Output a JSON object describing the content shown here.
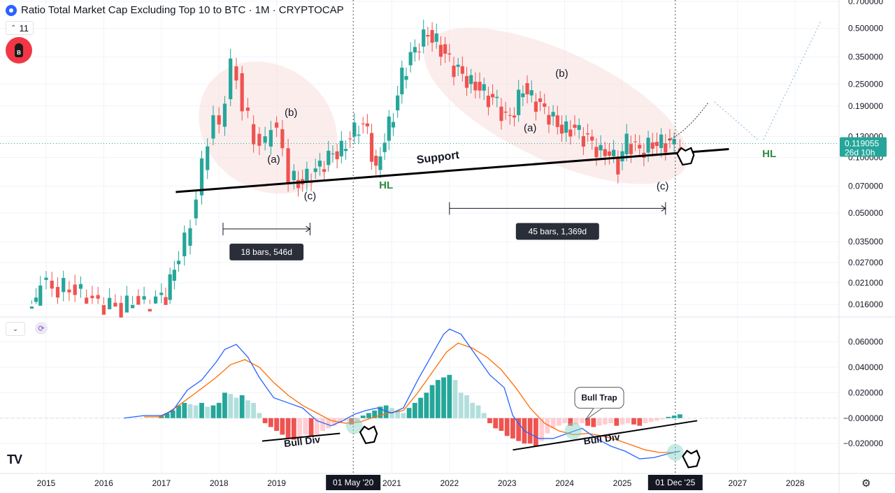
{
  "header": {
    "title": "Ratio Total Market Cap Excluding Top 10 to BTC · 1M · CRYPTOCAP",
    "indicator_count": "11",
    "symbol_badge": "B"
  },
  "chart_data": {
    "type": "candlestick",
    "title": "Ratio Total Market Cap Excluding Top 10 to BTC · 1M · CRYPTOCAP",
    "timeframe": "1M",
    "scale": "log",
    "x_ticks": [
      "2015",
      "2016",
      "2017",
      "2018",
      "2019",
      "2021",
      "2022",
      "2023",
      "2024",
      "2025",
      "2027",
      "2028"
    ],
    "x_ticks_years": [
      2015,
      2016,
      2017,
      2018,
      2019,
      2021,
      2022,
      2023,
      2024,
      2025,
      2027,
      2028
    ],
    "price_axis_labels": [
      "0.700000",
      "0.500000",
      "0.350000",
      "0.250000",
      "0.190000",
      "0.130000",
      "0.100000",
      "0.070000",
      "0.050000",
      "0.035000",
      "0.027000",
      "0.021000",
      "0.016000"
    ],
    "price_axis_values": [
      0.7,
      0.5,
      0.35,
      0.25,
      0.19,
      0.13,
      0.1,
      0.07,
      0.05,
      0.035,
      0.027,
      0.021,
      0.016
    ],
    "current_price": "0.119055",
    "current_price_value": 0.119055,
    "countdown": "26d 10h",
    "crosshair_labels": [
      "01 May '20",
      "01 Dec '25"
    ],
    "crosshair_years": [
      2020.33,
      2025.92
    ],
    "close_series": {
      "t": [
        2014.75,
        2014.9,
        2015.0,
        2015.2,
        2015.4,
        2015.6,
        2015.8,
        2016.0,
        2016.2,
        2016.4,
        2016.6,
        2016.8,
        2017.0,
        2017.15,
        2017.3,
        2017.4,
        2017.5,
        2017.6,
        2017.7,
        2017.8,
        2017.9,
        2018.0,
        2018.1,
        2018.2,
        2018.3,
        2018.4,
        2018.5,
        2018.6,
        2018.7,
        2018.8,
        2018.9,
        2019.0,
        2019.1,
        2019.2,
        2019.3,
        2019.45,
        2019.6,
        2019.75,
        2019.9,
        2020.05,
        2020.2,
        2020.35,
        2020.5,
        2020.65,
        2020.8,
        2020.95,
        2021.1,
        2021.25,
        2021.4,
        2021.55,
        2021.7,
        2021.85,
        2022.0,
        2022.15,
        2022.3,
        2022.45,
        2022.6,
        2022.75,
        2022.9,
        2023.05,
        2023.2,
        2023.35,
        2023.5,
        2023.65,
        2023.8,
        2023.95,
        2024.1,
        2024.25,
        2024.4,
        2024.55,
        2024.7,
        2024.85,
        2025.0,
        2025.15,
        2025.3,
        2025.45,
        2025.6,
        2025.75,
        2025.9,
        2026.0
      ],
      "v": [
        0.016,
        0.023,
        0.019,
        0.02,
        0.019,
        0.018,
        0.016,
        0.016,
        0.015,
        0.017,
        0.016,
        0.017,
        0.018,
        0.025,
        0.03,
        0.035,
        0.045,
        0.06,
        0.09,
        0.13,
        0.16,
        0.145,
        0.22,
        0.31,
        0.27,
        0.19,
        0.16,
        0.13,
        0.115,
        0.12,
        0.16,
        0.135,
        0.11,
        0.08,
        0.072,
        0.078,
        0.085,
        0.095,
        0.105,
        0.11,
        0.13,
        0.15,
        0.14,
        0.082,
        0.13,
        0.17,
        0.28,
        0.35,
        0.42,
        0.47,
        0.42,
        0.36,
        0.31,
        0.28,
        0.25,
        0.24,
        0.21,
        0.2,
        0.16,
        0.18,
        0.24,
        0.21,
        0.19,
        0.17,
        0.15,
        0.14,
        0.145,
        0.13,
        0.12,
        0.105,
        0.108,
        0.09,
        0.125,
        0.112,
        0.11,
        0.119,
        0.12,
        0.119,
        0.119,
        0.119
      ]
    },
    "annotations": [
      {
        "text": "(a)",
        "t": 2018.95,
        "price": 0.098
      },
      {
        "text": "(b)",
        "t": 2019.25,
        "price": 0.175
      },
      {
        "text": "(c)",
        "t": 2019.58,
        "price": 0.062
      },
      {
        "text": "HL",
        "t": 2020.9,
        "price": 0.071
      },
      {
        "text": "Support",
        "t": 2021.8,
        "price": 0.1
      },
      {
        "text": "(b)",
        "t": 2023.95,
        "price": 0.285
      },
      {
        "text": "(a)",
        "t": 2023.4,
        "price": 0.145
      },
      {
        "text": "(c)",
        "t": 2025.7,
        "price": 0.07
      },
      {
        "text": "HL",
        "t": 2027.55,
        "price": 0.105
      }
    ],
    "support_line": {
      "t0": 2017.25,
      "p0": 0.065,
      "t1": 2026.85,
      "p1": 0.111
    },
    "range_measures": [
      {
        "label": "18 bars, 546d",
        "t0": 2018.07,
        "t1": 2019.58,
        "price": 0.041
      },
      {
        "label": "45 bars, 1,369d",
        "t0": 2022.0,
        "t1": 2025.75,
        "price": 0.053
      }
    ],
    "macd": {
      "axis_labels": [
        "0.060000",
        "0.040000",
        "0.020000",
        "−0.000000",
        "−0.020000"
      ],
      "axis_values": [
        0.06,
        0.04,
        0.02,
        0.0,
        -0.02
      ],
      "ylim": [
        -0.038,
        0.074
      ],
      "macd_line": {
        "t": [
          2016.35,
          2016.7,
          2017.0,
          2017.2,
          2017.45,
          2017.7,
          2017.95,
          2018.1,
          2018.3,
          2018.5,
          2018.7,
          2018.95,
          2019.2,
          2019.45,
          2019.7,
          2019.95,
          2020.15,
          2020.35,
          2020.55,
          2020.75,
          2021.0,
          2021.2,
          2021.45,
          2021.7,
          2021.9,
          2022.0,
          2022.2,
          2022.45,
          2022.7,
          2022.95,
          2023.1,
          2023.3,
          2023.55,
          2023.8,
          2024.05,
          2024.3,
          2024.55,
          2024.8,
          2025.05,
          2025.3,
          2025.55,
          2025.8,
          2026.0
        ],
        "v": [
          0.0,
          0.002,
          0.002,
          0.006,
          0.022,
          0.03,
          0.044,
          0.054,
          0.058,
          0.048,
          0.032,
          0.016,
          0.012,
          0.008,
          -0.002,
          -0.006,
          -0.002,
          0.003,
          0.006,
          0.008,
          0.004,
          0.008,
          0.03,
          0.05,
          0.066,
          0.07,
          0.066,
          0.05,
          0.034,
          0.024,
          0.002,
          -0.01,
          -0.016,
          -0.016,
          -0.012,
          -0.008,
          -0.016,
          -0.022,
          -0.026,
          -0.032,
          -0.031,
          -0.028,
          -0.026
        ]
      },
      "signal_line": {
        "t": [
          2016.7,
          2017.0,
          2017.3,
          2017.6,
          2017.95,
          2018.2,
          2018.45,
          2018.7,
          2018.95,
          2019.2,
          2019.45,
          2019.7,
          2019.95,
          2020.2,
          2020.45,
          2020.7,
          2020.95,
          2021.2,
          2021.45,
          2021.7,
          2021.95,
          2022.15,
          2022.4,
          2022.65,
          2022.9,
          2023.15,
          2023.4,
          2023.65,
          2023.9,
          2024.15,
          2024.4,
          2024.65,
          2024.9,
          2025.15,
          2025.4,
          2025.65,
          2025.9,
          2026.0
        ],
        "v": [
          0.001,
          0.001,
          0.01,
          0.02,
          0.032,
          0.042,
          0.046,
          0.04,
          0.028,
          0.018,
          0.01,
          0.004,
          -0.002,
          -0.004,
          -0.003,
          0.001,
          0.004,
          0.006,
          0.02,
          0.036,
          0.052,
          0.059,
          0.055,
          0.048,
          0.038,
          0.024,
          0.008,
          -0.004,
          -0.01,
          -0.013,
          -0.012,
          -0.014,
          -0.017,
          -0.021,
          -0.025,
          -0.027,
          -0.027,
          -0.026
        ]
      },
      "histogram": {
        "t": [
          2017.0,
          2017.1,
          2017.2,
          2017.3,
          2017.4,
          2017.5,
          2017.6,
          2017.7,
          2017.8,
          2017.9,
          2018.0,
          2018.1,
          2018.2,
          2018.3,
          2018.4,
          2018.5,
          2018.6,
          2018.7,
          2018.8,
          2018.9,
          2019.0,
          2019.1,
          2019.2,
          2019.3,
          2019.4,
          2019.5,
          2019.6,
          2019.7,
          2019.8,
          2019.9,
          2020.0,
          2020.1,
          2020.2,
          2020.3,
          2020.4,
          2020.5,
          2020.6,
          2020.7,
          2020.8,
          2020.9,
          2021.0,
          2021.1,
          2021.2,
          2021.3,
          2021.4,
          2021.5,
          2021.6,
          2021.7,
          2021.8,
          2021.9,
          2022.0,
          2022.1,
          2022.2,
          2022.3,
          2022.4,
          2022.5,
          2022.6,
          2022.7,
          2022.8,
          2022.9,
          2023.0,
          2023.1,
          2023.2,
          2023.3,
          2023.4,
          2023.5,
          2023.6,
          2023.7,
          2023.8,
          2023.9,
          2024.0,
          2024.1,
          2024.2,
          2024.3,
          2024.4,
          2024.5,
          2024.6,
          2024.7,
          2024.8,
          2024.9,
          2025.0,
          2025.1,
          2025.2,
          2025.3,
          2025.4,
          2025.5,
          2025.6,
          2025.7,
          2025.8,
          2025.9,
          2026.0
        ],
        "v": [
          0.002,
          0.004,
          0.006,
          0.01,
          0.012,
          0.011,
          0.01,
          0.012,
          0.009,
          0.01,
          0.012,
          0.02,
          0.019,
          0.016,
          0.018,
          0.014,
          0.012,
          0.004,
          -0.004,
          -0.007,
          -0.01,
          -0.013,
          -0.016,
          -0.017,
          -0.016,
          -0.013,
          -0.014,
          -0.013,
          -0.01,
          -0.008,
          -0.006,
          -0.004,
          -0.002,
          -0.005,
          -0.003,
          0.002,
          0.004,
          0.006,
          0.009,
          0.01,
          0.008,
          0.006,
          0.004,
          0.008,
          0.012,
          0.016,
          0.02,
          0.026,
          0.03,
          0.032,
          0.034,
          0.03,
          0.02,
          0.018,
          0.012,
          0.01,
          0.004,
          -0.004,
          -0.008,
          -0.01,
          -0.014,
          -0.016,
          -0.018,
          -0.02,
          -0.02,
          -0.022,
          -0.018,
          -0.012,
          -0.008,
          -0.006,
          -0.004,
          -0.006,
          -0.005,
          -0.004,
          -0.006,
          -0.007,
          -0.006,
          -0.005,
          -0.004,
          -0.006,
          -0.005,
          -0.004,
          -0.005,
          -0.006,
          -0.004,
          -0.003,
          -0.002,
          -0.001,
          0.001,
          0.002,
          0.003
        ]
      },
      "annotations": [
        {
          "text": "Bull Div",
          "t": 2019.45,
          "v": -0.021
        },
        {
          "text": "Bull Div",
          "t": 2024.65,
          "v": -0.019
        },
        {
          "text": "Bull Trap",
          "t": 2024.6,
          "v": 0.016
        }
      ],
      "divergence_lines": [
        {
          "t0": 2018.75,
          "v0": -0.018,
          "t1": 2020.1,
          "v1": -0.012
        },
        {
          "t0": 2023.1,
          "v0": -0.025,
          "t1": 2026.3,
          "v1": -0.002
        }
      ],
      "circles": [
        {
          "t": 2020.35,
          "v": -0.006
        },
        {
          "t": 2024.15,
          "v": -0.01
        },
        {
          "t": 2025.92,
          "v": -0.027
        }
      ]
    },
    "colors": {
      "up": "#26a69a",
      "down": "#ef5350",
      "up_light": "#b2dfdb",
      "down_light": "#ffcdd2",
      "macd": "#2962ff",
      "signal": "#ff6d00",
      "price_tag": "#26a69a",
      "hl": "#2e8b3e"
    }
  }
}
